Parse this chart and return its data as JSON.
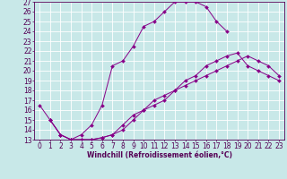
{
  "xlabel": "Windchill (Refroidissement éolien,°C)",
  "bg_color": "#c8e8e8",
  "grid_color": "#ffffff",
  "line_color": "#880088",
  "xlim": [
    -0.5,
    23.5
  ],
  "ylim": [
    13,
    27
  ],
  "xticks": [
    0,
    1,
    2,
    3,
    4,
    5,
    6,
    7,
    8,
    9,
    10,
    11,
    12,
    13,
    14,
    15,
    16,
    17,
    18,
    19,
    20,
    21,
    22,
    23
  ],
  "yticks": [
    13,
    14,
    15,
    16,
    17,
    18,
    19,
    20,
    21,
    22,
    23,
    24,
    25,
    26,
    27
  ],
  "line1_x": [
    0,
    1,
    2,
    3,
    4,
    5,
    6,
    7,
    8,
    9,
    10,
    11,
    12,
    13,
    14,
    15,
    16,
    17,
    18
  ],
  "line1_y": [
    16.5,
    15.0,
    13.5,
    13.0,
    13.5,
    14.5,
    16.5,
    20.5,
    21.0,
    22.5,
    24.5,
    25.0,
    26.0,
    27.0,
    27.0,
    27.0,
    26.5,
    25.0,
    24.0
  ],
  "line2_x": [
    1,
    2,
    3,
    4,
    5,
    6,
    7,
    8,
    9,
    10,
    11,
    12,
    13,
    14,
    15,
    16,
    17,
    18,
    19,
    20,
    21,
    22,
    23
  ],
  "line2_y": [
    15.0,
    13.5,
    13.0,
    13.0,
    13.0,
    13.2,
    13.5,
    14.0,
    15.0,
    16.0,
    16.5,
    17.0,
    18.0,
    19.0,
    19.5,
    20.5,
    21.0,
    21.5,
    21.8,
    20.5,
    20.0,
    19.5,
    19.0
  ],
  "line3_x": [
    1,
    2,
    3,
    4,
    5,
    6,
    7,
    8,
    9,
    10,
    11,
    12,
    13,
    14,
    15,
    16,
    17,
    18,
    19,
    20,
    21,
    22,
    23
  ],
  "line3_y": [
    15.0,
    13.5,
    13.0,
    13.0,
    13.0,
    13.2,
    13.5,
    14.5,
    15.5,
    16.0,
    17.0,
    17.5,
    18.0,
    18.5,
    19.0,
    19.5,
    20.0,
    20.5,
    21.0,
    21.5,
    21.0,
    20.5,
    19.5
  ],
  "tick_fontsize": 5.5,
  "label_fontsize": 5.5,
  "marker_size": 2.0,
  "line_width": 0.7
}
